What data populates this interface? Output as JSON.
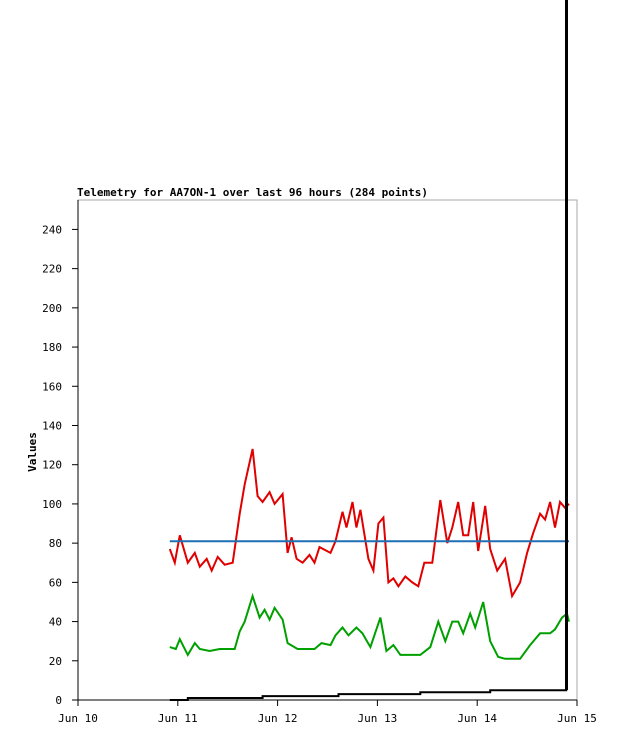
{
  "chart_data": {
    "type": "line",
    "title": "Telemetry for AA7ON-1 over last 96 hours (284 points)",
    "y_label": "Values",
    "xlim": [
      0,
      5
    ],
    "xticks": [
      {
        "value": 0,
        "label": "Jun 10"
      },
      {
        "value": 1,
        "label": "Jun 11"
      },
      {
        "value": 2,
        "label": "Jun 12"
      },
      {
        "value": 3,
        "label": "Jun 13"
      },
      {
        "value": 4,
        "label": "Jun 14"
      },
      {
        "value": 5,
        "label": "Jun 15"
      }
    ],
    "ylim": [
      0,
      255
    ],
    "yticks": [
      0,
      20,
      40,
      60,
      80,
      100,
      120,
      140,
      160,
      180,
      200,
      220,
      240
    ],
    "series": [
      {
        "color": "#e00000",
        "x": [
          0.92,
          0.97,
          1.02,
          1.1,
          1.17,
          1.22,
          1.29,
          1.34,
          1.4,
          1.47,
          1.55,
          1.62,
          1.67,
          1.75,
          1.8,
          1.85,
          1.92,
          1.97,
          2.05,
          2.1,
          2.14,
          2.19,
          2.25,
          2.32,
          2.37,
          2.42,
          2.53,
          2.58,
          2.65,
          2.69,
          2.75,
          2.79,
          2.83,
          2.91,
          2.96,
          3.01,
          3.06,
          3.11,
          3.16,
          3.21,
          3.28,
          3.35,
          3.41,
          3.47,
          3.55,
          3.63,
          3.7,
          3.75,
          3.81,
          3.86,
          3.91,
          3.96,
          4.01,
          4.08,
          4.13,
          4.2,
          4.28,
          4.35,
          4.43,
          4.5,
          4.56,
          4.63,
          4.68,
          4.73,
          4.78,
          4.83,
          4.88,
          4.92
        ],
        "values": [
          77,
          70,
          84,
          70,
          75,
          68,
          72,
          66,
          73,
          69,
          70,
          95,
          110,
          128,
          104,
          101,
          106,
          100,
          105,
          75,
          83,
          72,
          70,
          74,
          70,
          78,
          75,
          81,
          96,
          88,
          101,
          88,
          97,
          72,
          66,
          90,
          93,
          60,
          62,
          58,
          63,
          60,
          58,
          70,
          70,
          102,
          80,
          88,
          101,
          84,
          84,
          101,
          76,
          99,
          77,
          66,
          72,
          53,
          60,
          75,
          85,
          95,
          92,
          101,
          88,
          101,
          98,
          100
        ]
      },
      {
        "color": "#1f6fb4",
        "x": [
          0.92,
          4.92
        ],
        "values": [
          81,
          81
        ]
      },
      {
        "color": "#00a000",
        "x": [
          0.92,
          0.98,
          1.02,
          1.1,
          1.17,
          1.22,
          1.32,
          1.42,
          1.57,
          1.62,
          1.67,
          1.75,
          1.82,
          1.87,
          1.92,
          1.97,
          2.05,
          2.1,
          2.2,
          2.37,
          2.44,
          2.53,
          2.58,
          2.65,
          2.71,
          2.79,
          2.85,
          2.93,
          3.03,
          3.09,
          3.16,
          3.23,
          3.43,
          3.53,
          3.61,
          3.68,
          3.75,
          3.81,
          3.86,
          3.93,
          3.98,
          4.06,
          4.13,
          4.21,
          4.28,
          4.43,
          4.53,
          4.63,
          4.73,
          4.78,
          4.85,
          4.9,
          4.92
        ],
        "values": [
          27,
          26,
          31,
          23,
          29,
          26,
          25,
          26,
          26,
          35,
          40,
          53,
          42,
          46,
          41,
          47,
          41,
          29,
          26,
          26,
          29,
          28,
          33,
          37,
          33,
          37,
          34,
          27,
          42,
          25,
          28,
          23,
          23,
          27,
          40,
          30,
          40,
          40,
          34,
          44,
          37,
          50,
          30,
          22,
          21,
          21,
          28,
          34,
          34,
          36,
          42,
          44,
          40
        ]
      },
      {
        "color": "#000000",
        "x": [
          0.92,
          1.1,
          1.1,
          1.85,
          1.85,
          2.61,
          2.61,
          3.43,
          3.43,
          4.13,
          4.13,
          4.89,
          4.89,
          4.9,
          4.9
        ],
        "values": [
          0,
          0,
          1,
          1,
          2,
          2,
          3,
          3,
          4,
          4,
          5,
          5,
          357,
          357,
          5
        ]
      }
    ]
  }
}
